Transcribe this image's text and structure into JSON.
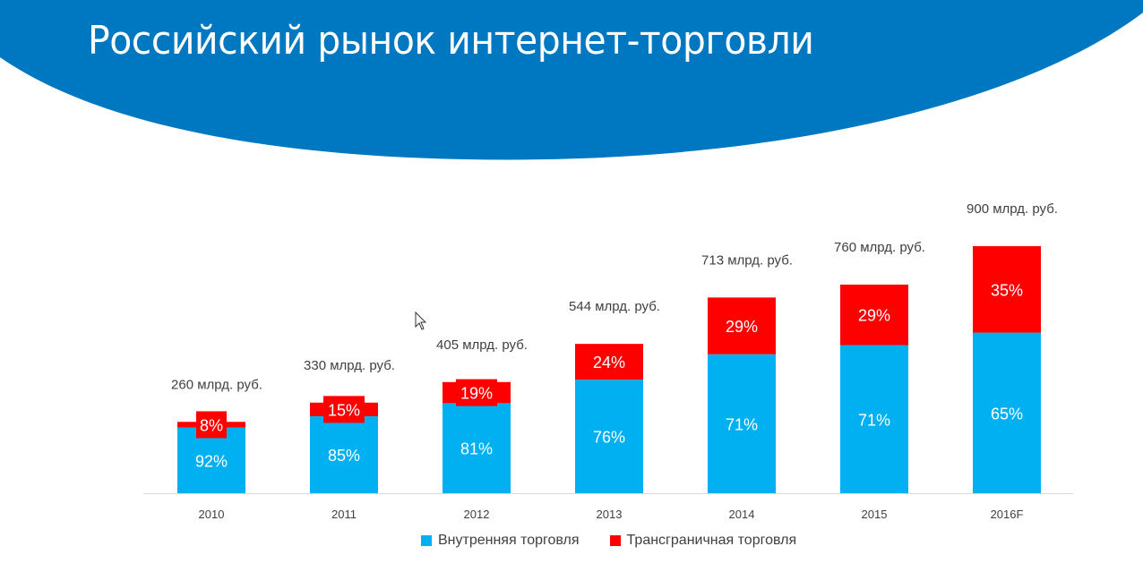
{
  "slide": {
    "title": "Российский рынок интернет-торговли",
    "header_color": "#0078C1"
  },
  "chart_data": {
    "type": "bar",
    "stacked": true,
    "categories": [
      "2010",
      "2011",
      "2012",
      "2013",
      "2014",
      "2015",
      "2016F"
    ],
    "totals": [
      260,
      330,
      405,
      544,
      713,
      760,
      900
    ],
    "total_labels": [
      "260 млрд. руб.",
      "330 млрд. руб.",
      "405 млрд. руб.",
      "544 млрд. руб.",
      "713 млрд. руб.",
      "760 млрд. руб.",
      "900 млрд. руб."
    ],
    "unit": "млрд. руб.",
    "series": [
      {
        "name": "Внутренняя торговля",
        "color": "#00B0F0",
        "percent": [
          92,
          85,
          81,
          76,
          71,
          71,
          65
        ],
        "labels": [
          "92%",
          "85%",
          "81%",
          "76%",
          "71%",
          "71%",
          "65%"
        ]
      },
      {
        "name": "Трансграничная торговля",
        "color": "#FF0000",
        "percent": [
          8,
          15,
          19,
          24,
          29,
          29,
          35
        ],
        "labels": [
          "8%",
          "15%",
          "19%",
          "24%",
          "29%",
          "29%",
          "35%"
        ]
      }
    ],
    "ylim": [
      0,
      900
    ],
    "grid": false,
    "y_axis_visible": false,
    "legend_position": "bottom"
  }
}
